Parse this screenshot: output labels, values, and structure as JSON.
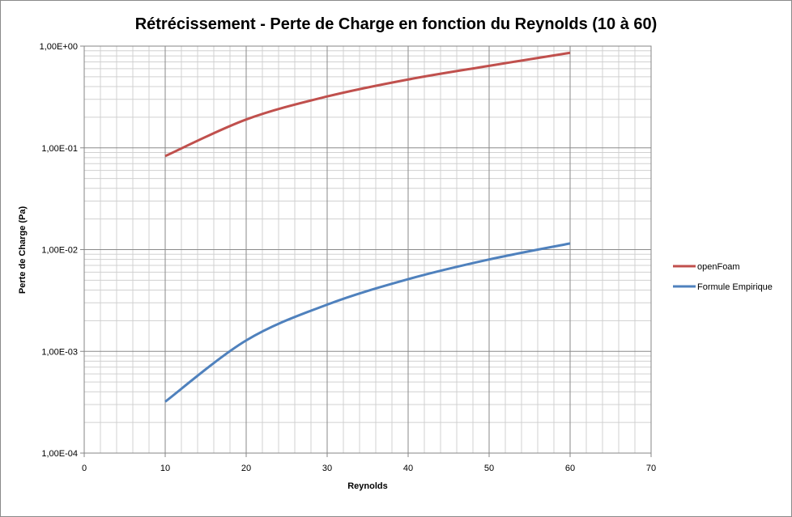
{
  "chart_data": {
    "type": "line",
    "title": "Rétrécissement - Perte de Charge en fonction du Reynolds (10 à 60)",
    "xlabel": "Reynolds",
    "ylabel": "Perte de Charge (Pa)",
    "x_scale": "linear",
    "y_scale": "log",
    "xlim": [
      0,
      70
    ],
    "ylim": [
      0.0001,
      1
    ],
    "grid": true,
    "legend_position": "right",
    "x_ticks": [
      "0",
      "10",
      "20",
      "30",
      "40",
      "50",
      "60",
      "70"
    ],
    "y_ticks": [
      "1,00E-04",
      "1,00E-03",
      "1,00E-02",
      "1,00E-01",
      "1,00E+00"
    ],
    "series": [
      {
        "name": "openFoam",
        "color": "#c0504d",
        "x": [
          10,
          20,
          30,
          40,
          50,
          60
        ],
        "y": [
          0.083,
          0.19,
          0.32,
          0.47,
          0.64,
          0.86
        ]
      },
      {
        "name": "Formule Empirique",
        "color": "#4f81bd",
        "x": [
          10,
          20,
          30,
          40,
          50,
          60
        ],
        "y": [
          0.00032,
          0.00128,
          0.00288,
          0.00512,
          0.008,
          0.0115
        ]
      }
    ]
  }
}
